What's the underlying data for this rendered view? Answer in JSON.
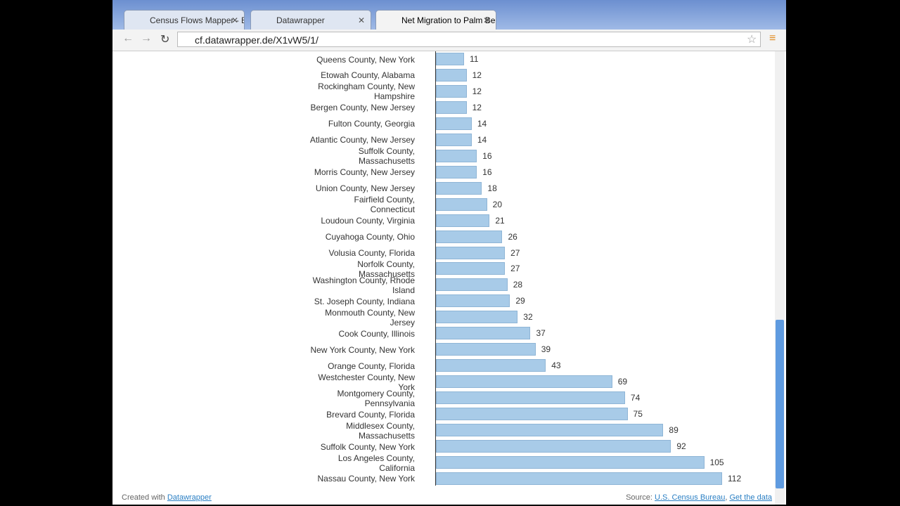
{
  "browser": {
    "tabs": [
      "Census Flows Mapper - Be",
      "Datawrapper",
      "Net Migration to Palm Be"
    ],
    "url": "cf.datawrapper.de/X1vW5/1/"
  },
  "chart_data": {
    "type": "bar",
    "orientation": "horizontal",
    "color": "#a8cbe8",
    "categories": [
      "Queens County, New York",
      "Etowah County, Alabama",
      "Rockingham County, New Hampshire",
      "Bergen County, New Jersey",
      "Fulton County, Georgia",
      "Atlantic County, New Jersey",
      "Suffolk County, Massachusetts",
      "Morris County, New Jersey",
      "Union County, New Jersey",
      "Fairfield County, Connecticut",
      "Loudoun County, Virginia",
      "Cuyahoga County, Ohio",
      "Volusia County, Florida",
      "Norfolk County, Massachusetts",
      "Washington County, Rhode Island",
      "St. Joseph County, Indiana",
      "Monmouth County, New Jersey",
      "Cook County, Illinois",
      "New York County, New York",
      "Orange County, Florida",
      "Westchester County, New York",
      "Montgomery County, Pennsylvania",
      "Brevard County, Florida",
      "Middlesex County, Massachusetts",
      "Suffolk County, New York",
      "Los Angeles County, California",
      "Nassau County, New York"
    ],
    "values": [
      11,
      12,
      12,
      12,
      14,
      14,
      16,
      16,
      18,
      20,
      21,
      26,
      27,
      27,
      28,
      29,
      32,
      37,
      39,
      43,
      69,
      74,
      75,
      89,
      92,
      105,
      112
    ]
  },
  "footer": {
    "created": "Created with",
    "created_link": "Datawrapper",
    "source": "Source:",
    "source_link": "U.S. Census Bureau",
    "get_data": "Get the data"
  }
}
